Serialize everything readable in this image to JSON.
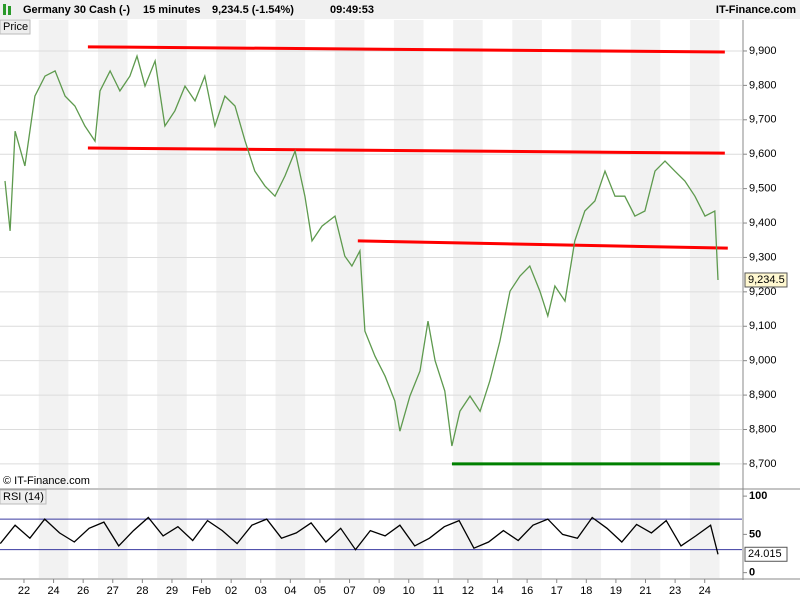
{
  "header": {
    "instrument": "Germany 30 Cash (-)",
    "interval": "15 minutes",
    "quote": "9,234.5 (-1.54%)",
    "time": "09:49:53",
    "brand": "IT-Finance.com"
  },
  "chart_data": [
    {
      "type": "line",
      "title": "Price",
      "source": "© IT-Finance.com",
      "x": [
        -0.64,
        -0.47,
        -0.3,
        0.03,
        0.37,
        0.71,
        1.05,
        1.39,
        1.72,
        2.06,
        2.4,
        2.57,
        2.91,
        3.24,
        3.58,
        3.82,
        4.09,
        4.43,
        4.76,
        5.1,
        5.44,
        5.78,
        6.11,
        6.45,
        6.79,
        7.13,
        7.47,
        7.8,
        8.14,
        8.48,
        8.82,
        9.16,
        9.49,
        9.73,
        10.07,
        10.51,
        10.84,
        11.08,
        11.35,
        11.52,
        11.86,
        12.2,
        12.53,
        12.7,
        13.04,
        13.38,
        13.65,
        13.89,
        14.22,
        14.46,
        14.73,
        15.07,
        15.41,
        15.74,
        16.08,
        16.42,
        16.76,
        17.09,
        17.43,
        17.7,
        17.94,
        18.28,
        18.61,
        18.95,
        19.29,
        19.63,
        19.97,
        20.3,
        20.64,
        20.98,
        21.32,
        21.66,
        21.99,
        22.33,
        22.67,
        23.01,
        23.34,
        23.45
      ],
      "series": [
        {
          "name": "Price",
          "color": "#5e9a4e",
          "values": [
            9522,
            9377,
            9667,
            9566,
            9769,
            9827,
            9842,
            9769,
            9740,
            9682,
            9638,
            9784,
            9842,
            9784,
            9827,
            9885,
            9798,
            9871,
            9682,
            9726,
            9798,
            9755,
            9827,
            9682,
            9769,
            9740,
            9638,
            9551,
            9508,
            9478,
            9537,
            9609,
            9478,
            9348,
            9391,
            9420,
            9304,
            9275,
            9319,
            9086,
            9013,
            8955,
            8883,
            8795,
            8897,
            8970,
            9115,
            9000,
            8912,
            8752,
            8853,
            8897,
            8853,
            8941,
            9057,
            9202,
            9246,
            9275,
            9202,
            9130,
            9217,
            9173,
            9348,
            9435,
            9464,
            9551,
            9478,
            9478,
            9420,
            9435,
            9551,
            9580,
            9551,
            9522,
            9478,
            9420,
            9435,
            9234.5
          ]
        }
      ],
      "last_price": {
        "value": 9234.5,
        "label": "9,234.5"
      },
      "trendlines": [
        {
          "x": [
            2.16,
            23.68
          ],
          "y": [
            9912,
            9897
          ],
          "color": "#ff0000"
        },
        {
          "x": [
            2.16,
            23.68
          ],
          "y": [
            9618,
            9603
          ],
          "color": "#ff0000"
        },
        {
          "x": [
            11.28,
            23.78
          ],
          "y": [
            9348,
            9327
          ],
          "color": "#ff0000"
        },
        {
          "x": [
            14.46,
            23.51
          ],
          "y": [
            8700,
            8700
          ],
          "color": "#008000"
        }
      ],
      "xlim": [
        -0.81,
        24.26
      ],
      "ylim": [
        8630,
        9990
      ],
      "yticks": [
        {
          "value": 8700,
          "label": "8,700"
        },
        {
          "value": 8800,
          "label": "8,800"
        },
        {
          "value": 8900,
          "label": "8,900"
        },
        {
          "value": 9000,
          "label": "9,000"
        },
        {
          "value": 9100,
          "label": "9,100"
        },
        {
          "value": 9200,
          "label": "9,200"
        },
        {
          "value": 9300,
          "label": "9,300"
        },
        {
          "value": 9400,
          "label": "9,400"
        },
        {
          "value": 9500,
          "label": "9,500"
        },
        {
          "value": 9600,
          "label": "9,600"
        },
        {
          "value": 9700,
          "label": "9,700"
        },
        {
          "value": 9800,
          "label": "9,800"
        },
        {
          "value": 9900,
          "label": "9,900"
        }
      ],
      "grid": true
    },
    {
      "type": "line",
      "title": "RSI (14)",
      "x": [
        -0.8,
        -0.3,
        0.2,
        0.7,
        1.2,
        1.7,
        2.2,
        2.7,
        3.2,
        3.7,
        4.2,
        4.7,
        5.2,
        5.7,
        6.2,
        6.7,
        7.2,
        7.7,
        8.2,
        8.7,
        9.2,
        9.7,
        10.2,
        10.7,
        11.2,
        11.7,
        12.2,
        12.7,
        13.2,
        13.7,
        14.2,
        14.7,
        15.2,
        15.7,
        16.2,
        16.7,
        17.2,
        17.7,
        18.2,
        18.7,
        19.2,
        19.7,
        20.2,
        20.7,
        21.2,
        21.7,
        22.2,
        22.7,
        23.2,
        23.45
      ],
      "series": [
        {
          "name": "RSI (14)",
          "color": "#000000",
          "values": [
            38,
            62,
            45,
            70,
            52,
            40,
            58,
            66,
            35,
            55,
            72,
            48,
            60,
            42,
            68,
            55,
            38,
            62,
            70,
            45,
            52,
            65,
            40,
            58,
            30,
            55,
            48,
            62,
            35,
            45,
            60,
            68,
            32,
            40,
            55,
            42,
            62,
            70,
            50,
            45,
            72,
            58,
            40,
            63,
            52,
            68,
            35,
            48,
            62,
            24.015
          ]
        }
      ],
      "levels": [
        30,
        70
      ],
      "level_color": "#3a3aa0",
      "xlim": [
        -0.81,
        24.26
      ],
      "ylim": [
        -7,
        108
      ],
      "yticks": [
        0,
        50,
        100
      ],
      "xticks": [
        {
          "value": 0,
          "label": "22"
        },
        {
          "value": 1,
          "label": "24"
        },
        {
          "value": 2,
          "label": "26"
        },
        {
          "value": 3,
          "label": "27"
        },
        {
          "value": 4,
          "label": "28"
        },
        {
          "value": 5,
          "label": "29"
        },
        {
          "value": 6,
          "label": "Feb"
        },
        {
          "value": 7,
          "label": "02"
        },
        {
          "value": 8,
          "label": "03"
        },
        {
          "value": 9,
          "label": "04"
        },
        {
          "value": 10,
          "label": "05"
        },
        {
          "value": 11,
          "label": "07"
        },
        {
          "value": 12,
          "label": "09"
        },
        {
          "value": 13,
          "label": "10"
        },
        {
          "value": 14,
          "label": "11"
        },
        {
          "value": 15,
          "label": "12"
        },
        {
          "value": 16,
          "label": "14"
        },
        {
          "value": 17,
          "label": "16"
        },
        {
          "value": 18,
          "label": "17"
        },
        {
          "value": 19,
          "label": "18"
        },
        {
          "value": 20,
          "label": "19"
        },
        {
          "value": 21,
          "label": "21"
        },
        {
          "value": 22,
          "label": "23"
        },
        {
          "value": 23,
          "label": "24"
        }
      ]
    }
  ]
}
